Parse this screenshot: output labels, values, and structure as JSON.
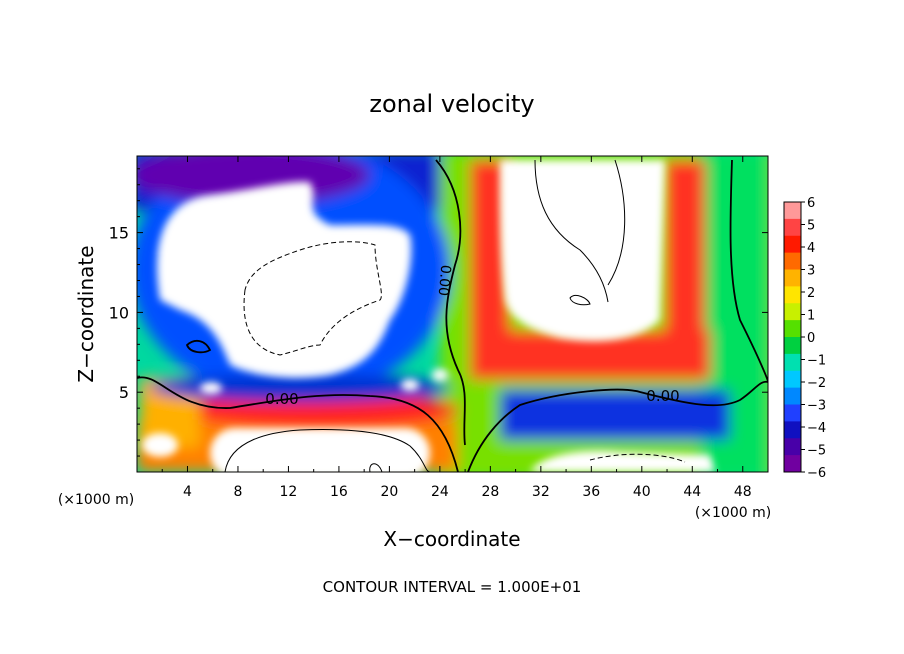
{
  "chart_data": {
    "type": "heatmap",
    "title": "zonal velocity",
    "xlabel": "X−coordinate",
    "ylabel": "Z−coordinate",
    "x_unit_label": "(×1000 m)",
    "z_unit_label": "(×1000 m)",
    "footer": "CONTOUR INTERVAL = 1.000E+01",
    "xlim": [
      0,
      50
    ],
    "ylim": [
      0,
      19.8
    ],
    "x_ticks": [
      4,
      8,
      12,
      16,
      20,
      24,
      28,
      32,
      36,
      40,
      44,
      48
    ],
    "y_ticks": [
      5,
      10,
      15
    ],
    "colorbar": {
      "range": [
        -6,
        6
      ],
      "ticks": [
        6,
        5,
        4,
        3,
        2,
        1,
        0,
        -1,
        -2,
        -3,
        -4,
        -5,
        -6
      ],
      "tick_labels": [
        "6",
        "5",
        "4",
        "3",
        "2",
        "1",
        "0",
        "−1",
        "−2",
        "−3",
        "−4",
        "−5",
        "−6"
      ],
      "colors": [
        "#ff9999",
        "#ff4444",
        "#ff1a00",
        "#ff6a00",
        "#ffb300",
        "#ffe500",
        "#c8f000",
        "#55e000",
        "#00d040",
        "#00e0b0",
        "#00c8ff",
        "#0088ff",
        "#2040ff",
        "#1010c0",
        "#4800a8",
        "#7000a0"
      ]
    },
    "contour_labels": [
      "0.00",
      "0.00",
      "0.00"
    ]
  }
}
